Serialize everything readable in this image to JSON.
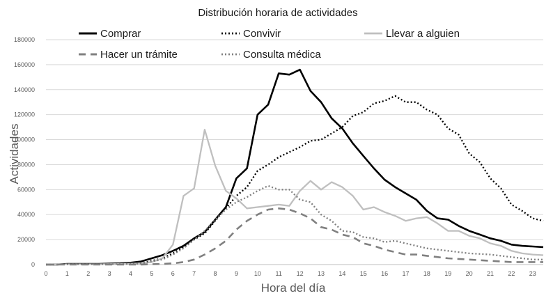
{
  "chart_data": {
    "type": "line",
    "title": "Distribución horaria de actividades",
    "xlabel": "Hora del día",
    "ylabel": "Actividades",
    "xlim": [
      0,
      23.5
    ],
    "ylim": [
      0,
      180000
    ],
    "x_ticks": [
      0,
      1,
      2,
      3,
      4,
      5,
      6,
      7,
      8,
      9,
      10,
      11,
      12,
      13,
      14,
      15,
      16,
      17,
      18,
      19,
      20,
      21,
      22,
      23
    ],
    "y_ticks": [
      0,
      20000,
      40000,
      60000,
      80000,
      100000,
      120000,
      140000,
      160000,
      180000
    ],
    "grid": "horizontal",
    "legend_position": "top",
    "x": [
      0,
      0.5,
      1,
      1.5,
      2,
      2.5,
      3,
      3.5,
      4,
      4.5,
      5,
      5.5,
      6,
      6.5,
      7,
      7.5,
      8,
      8.5,
      9,
      9.5,
      10,
      10.5,
      11,
      11.5,
      12,
      12.5,
      13,
      13.5,
      14,
      14.5,
      15,
      15.5,
      16,
      16.5,
      17,
      17.5,
      18,
      18.5,
      19,
      19.5,
      20,
      20.5,
      21,
      21.5,
      22,
      22.5,
      23,
      23.5
    ],
    "series": [
      {
        "name": "Comprar",
        "color": "#000000",
        "dash": "solid",
        "width": 2.6,
        "values": [
          0,
          0,
          500,
          500,
          500,
          500,
          800,
          1000,
          1500,
          2500,
          5000,
          7500,
          11000,
          15000,
          21000,
          26000,
          36000,
          46000,
          69000,
          77000,
          120000,
          128000,
          153000,
          152000,
          156000,
          139000,
          130000,
          117000,
          109000,
          97000,
          87000,
          77000,
          68000,
          62000,
          57000,
          52000,
          43000,
          37000,
          36000,
          31000,
          27000,
          24000,
          21000,
          19000,
          16000,
          15000,
          14500,
          14000
        ]
      },
      {
        "name": "Convivir",
        "color": "#000000",
        "dash": "dot",
        "width": 2.3,
        "values": [
          0,
          0,
          300,
          300,
          300,
          400,
          500,
          600,
          700,
          1000,
          3000,
          5000,
          9000,
          14000,
          20000,
          25000,
          35000,
          45000,
          55000,
          62000,
          75000,
          80000,
          86000,
          90000,
          94000,
          99000,
          100000,
          105000,
          110000,
          119000,
          122000,
          129000,
          131000,
          135000,
          130000,
          130000,
          124000,
          120000,
          109000,
          104000,
          89000,
          82000,
          69000,
          61000,
          48000,
          43000,
          37000,
          35000
        ]
      },
      {
        "name": "Llevar a alguien",
        "color": "#bfbfbf",
        "dash": "solid",
        "width": 2.3,
        "values": [
          0,
          0,
          300,
          300,
          300,
          300,
          400,
          500,
          800,
          1000,
          2000,
          5000,
          16000,
          55000,
          61000,
          108000,
          79000,
          59000,
          53000,
          45000,
          46000,
          47000,
          48000,
          47000,
          59000,
          67000,
          60000,
          66000,
          62000,
          55000,
          44000,
          46000,
          42000,
          39000,
          35000,
          37000,
          38000,
          33000,
          27000,
          27000,
          23000,
          21000,
          17000,
          15000,
          11000,
          9000,
          8000,
          7500
        ]
      },
      {
        "name": "Hacer un trámite",
        "color": "#808080",
        "dash": "dash",
        "width": 2.6,
        "values": [
          0,
          0,
          0,
          0,
          0,
          0,
          0,
          0,
          0,
          0,
          300,
          500,
          1000,
          2000,
          4000,
          8000,
          13000,
          19000,
          28000,
          35000,
          40000,
          44000,
          45000,
          44000,
          41000,
          37000,
          30000,
          28000,
          24000,
          22000,
          17000,
          15000,
          12000,
          10000,
          8000,
          8000,
          7000,
          6000,
          5000,
          4500,
          4000,
          3500,
          3000,
          2500,
          2000,
          2000,
          2000,
          2000
        ]
      },
      {
        "name": "Consulta médica",
        "color": "#808080",
        "dash": "dot",
        "width": 2.3,
        "values": [
          0,
          0,
          200,
          200,
          200,
          300,
          300,
          400,
          500,
          800,
          2500,
          4000,
          8000,
          13000,
          20000,
          27000,
          36000,
          44000,
          50000,
          54000,
          59000,
          63000,
          60000,
          60000,
          52000,
          50000,
          40000,
          35000,
          27000,
          26000,
          22000,
          21000,
          18000,
          19000,
          17000,
          15000,
          13000,
          12000,
          11000,
          10000,
          9000,
          8500,
          8000,
          7000,
          6000,
          5000,
          4000,
          4000
        ]
      }
    ]
  }
}
